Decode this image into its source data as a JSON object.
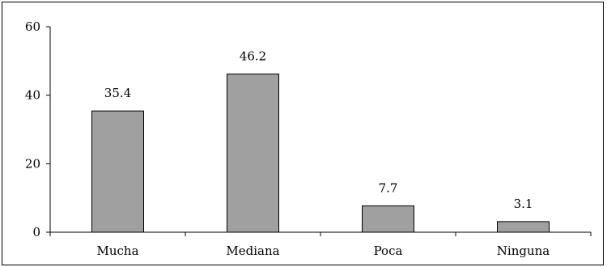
{
  "chart_data": {
    "type": "bar",
    "categories": [
      "Mucha",
      "Mediana",
      "Poca",
      "Ninguna"
    ],
    "values": [
      35.4,
      46.2,
      7.7,
      3.1
    ],
    "data_labels": [
      "35.4",
      "46.2",
      "7.7",
      "3.1"
    ],
    "y_ticks": [
      "0",
      "20",
      "40",
      "60"
    ],
    "ylim": [
      0,
      60
    ],
    "grid": false,
    "legend": "none",
    "bar_color": "#a0a0a0",
    "bar_stroke": "#000000"
  }
}
